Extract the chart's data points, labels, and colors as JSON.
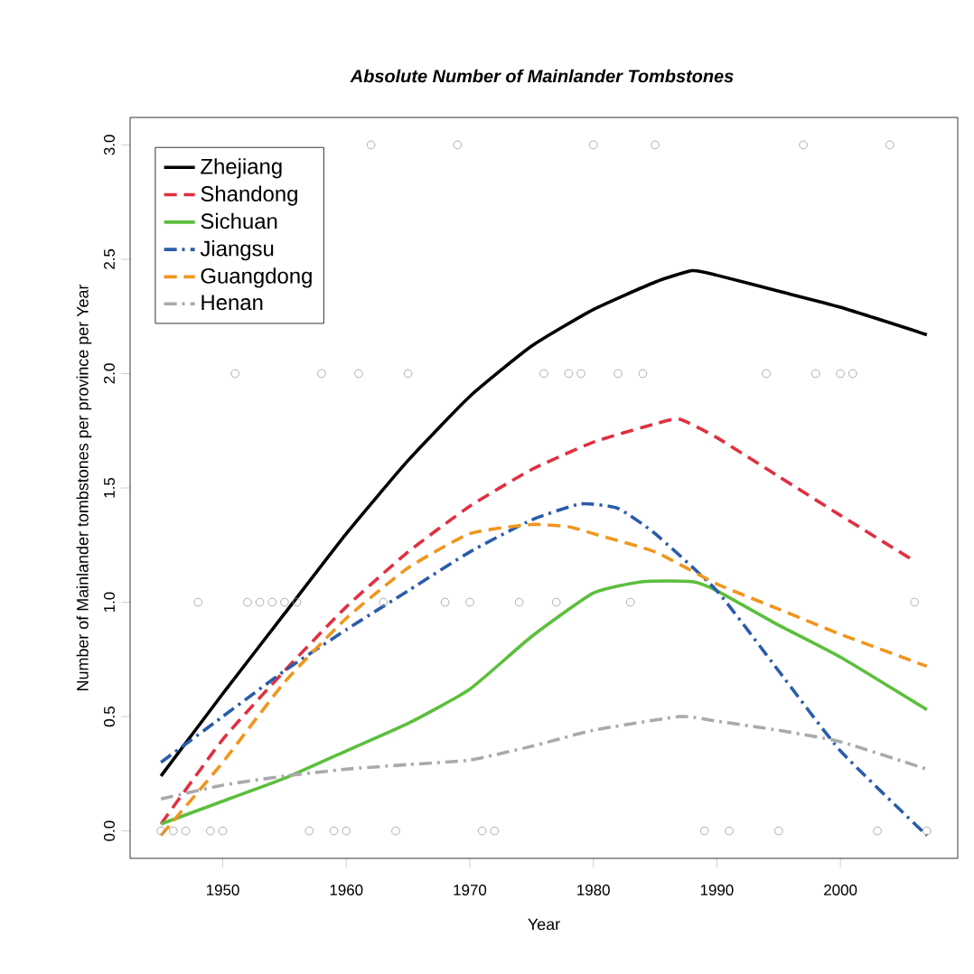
{
  "chart_data": {
    "type": "line",
    "title": "Absolute Number of Mainlander Tombstones",
    "xlabel": "Year",
    "ylabel": "Number of Mainlander tombstones per province per Year",
    "xlim": [
      1942.5,
      2009.5
    ],
    "ylim": [
      -0.12,
      3.12
    ],
    "xticks": [
      1950,
      1960,
      1970,
      1980,
      1990,
      2000
    ],
    "yticks": [
      {
        "value": 0,
        "label": "0.0"
      },
      {
        "value": 0.5,
        "label": "0.5"
      },
      {
        "value": 1,
        "label": "1.0"
      },
      {
        "value": 1.5,
        "label": "1.5"
      },
      {
        "value": 2,
        "label": "2.0"
      },
      {
        "value": 2.5,
        "label": "2.5"
      },
      {
        "value": 3,
        "label": "3.0"
      }
    ],
    "legend": "top left",
    "grid": false,
    "series": [
      {
        "type": "scatter",
        "color": "#999999",
        "marker": "circle",
        "x": [
          1962,
          1969,
          1980,
          1985,
          1997,
          2004,
          1951,
          1958,
          1961,
          1965,
          1976,
          1978,
          1979,
          1982,
          1984,
          1994,
          1998,
          2000,
          2001,
          1948,
          1952,
          1953,
          1954,
          1955,
          1956,
          1963,
          1968,
          1970,
          1974,
          1977,
          1983,
          2006,
          1945,
          1946,
          1947,
          1949,
          1950,
          1957,
          1959,
          1960,
          1964,
          1971,
          1972,
          1989,
          1991,
          1995,
          2003,
          2007
        ],
        "values": [
          3,
          3,
          3,
          3,
          3,
          3,
          2,
          2,
          2,
          2,
          2,
          2,
          2,
          2,
          2,
          2,
          2,
          2,
          2,
          1,
          1,
          1,
          1,
          1,
          1,
          1,
          1,
          1,
          1,
          1,
          1,
          1,
          0,
          0,
          0,
          0,
          0,
          0,
          0,
          0,
          0,
          0,
          0,
          0,
          0,
          0,
          0,
          0
        ]
      },
      {
        "name": "Zhejiang",
        "color": "#000000",
        "line_style": "solid",
        "x": [
          1945,
          1950,
          1955,
          1960,
          1965,
          1970,
          1975,
          1980,
          1985,
          1988,
          1990,
          1995,
          2000,
          2007
        ],
        "values": [
          0.24,
          0.6,
          0.95,
          1.3,
          1.62,
          1.9,
          2.12,
          2.28,
          2.4,
          2.45,
          2.43,
          2.36,
          2.29,
          2.17
        ]
      },
      {
        "name": "Shandong",
        "color": "#e03040",
        "line_style": "dashed",
        "x": [
          1945,
          1950,
          1955,
          1960,
          1965,
          1970,
          1975,
          1980,
          1985,
          1987,
          1990,
          1995,
          2000,
          2006
        ],
        "values": [
          0.03,
          0.4,
          0.7,
          0.98,
          1.22,
          1.42,
          1.58,
          1.7,
          1.78,
          1.8,
          1.72,
          1.55,
          1.38,
          1.18
        ]
      },
      {
        "name": "Sichuan",
        "color": "#5cbf3c",
        "line_style": "solid",
        "x": [
          1945,
          1950,
          1955,
          1960,
          1965,
          1970,
          1975,
          1980,
          1984,
          1988,
          1990,
          1995,
          2000,
          2007
        ],
        "values": [
          0.03,
          0.13,
          0.23,
          0.35,
          0.47,
          0.62,
          0.85,
          1.04,
          1.09,
          1.09,
          1.05,
          0.9,
          0.76,
          0.53
        ]
      },
      {
        "name": "Jiangsu",
        "color": "#2a5caa",
        "line_style": "dashdot",
        "x": [
          1945,
          1950,
          1955,
          1960,
          1965,
          1970,
          1975,
          1979,
          1982,
          1985,
          1990,
          1995,
          2000,
          2007
        ],
        "values": [
          0.3,
          0.5,
          0.7,
          0.88,
          1.05,
          1.22,
          1.36,
          1.43,
          1.41,
          1.3,
          1.05,
          0.7,
          0.35,
          -0.02
        ]
      },
      {
        "name": "Guangdong",
        "color": "#f0961e",
        "line_style": "dashed",
        "x": [
          1945,
          1950,
          1955,
          1960,
          1965,
          1970,
          1975,
          1978,
          1980,
          1985,
          1990,
          1995,
          2000,
          2007
        ],
        "values": [
          -0.02,
          0.3,
          0.65,
          0.93,
          1.15,
          1.3,
          1.34,
          1.33,
          1.3,
          1.22,
          1.08,
          0.97,
          0.86,
          0.72
        ]
      },
      {
        "name": "Henan",
        "color": "#aaaaaa",
        "line_style": "dashdot",
        "x": [
          1945,
          1950,
          1955,
          1960,
          1965,
          1970,
          1975,
          1980,
          1987,
          1990,
          1995,
          2000,
          2007
        ],
        "values": [
          0.14,
          0.2,
          0.24,
          0.27,
          0.29,
          0.31,
          0.37,
          0.44,
          0.5,
          0.48,
          0.44,
          0.39,
          0.27
        ]
      }
    ]
  }
}
